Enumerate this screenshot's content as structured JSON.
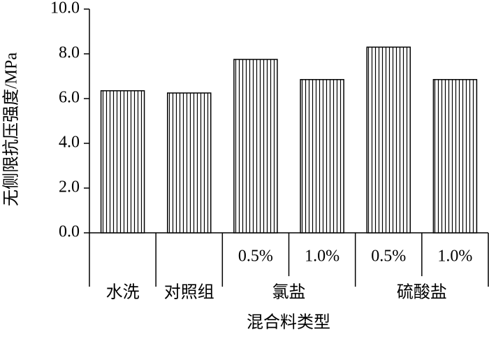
{
  "chart_data": {
    "type": "bar",
    "x_label": "混合料类型",
    "y_label": "无侧限抗压强度/MPa",
    "category_groups": [
      {
        "name": "水洗",
        "categories": [
          null
        ]
      },
      {
        "name": "对照组",
        "categories": [
          null
        ]
      },
      {
        "name": "氯盐",
        "categories": [
          "0.5%",
          "1.0%"
        ]
      },
      {
        "name": "硫酸盐",
        "categories": [
          "0.5%",
          "1.0%"
        ]
      }
    ],
    "values": [
      6.35,
      6.25,
      7.75,
      6.85,
      8.3,
      6.85
    ],
    "color": "#000000",
    "ylim": [
      0,
      10
    ],
    "yticks": [
      {
        "value": 0,
        "label": "0.0"
      },
      {
        "value": 2,
        "label": "2.0"
      },
      {
        "value": 4,
        "label": "4.0"
      },
      {
        "value": 6,
        "label": "6.0"
      },
      {
        "value": 8,
        "label": "8.0"
      },
      {
        "value": 10,
        "label": "10.0"
      }
    ]
  }
}
